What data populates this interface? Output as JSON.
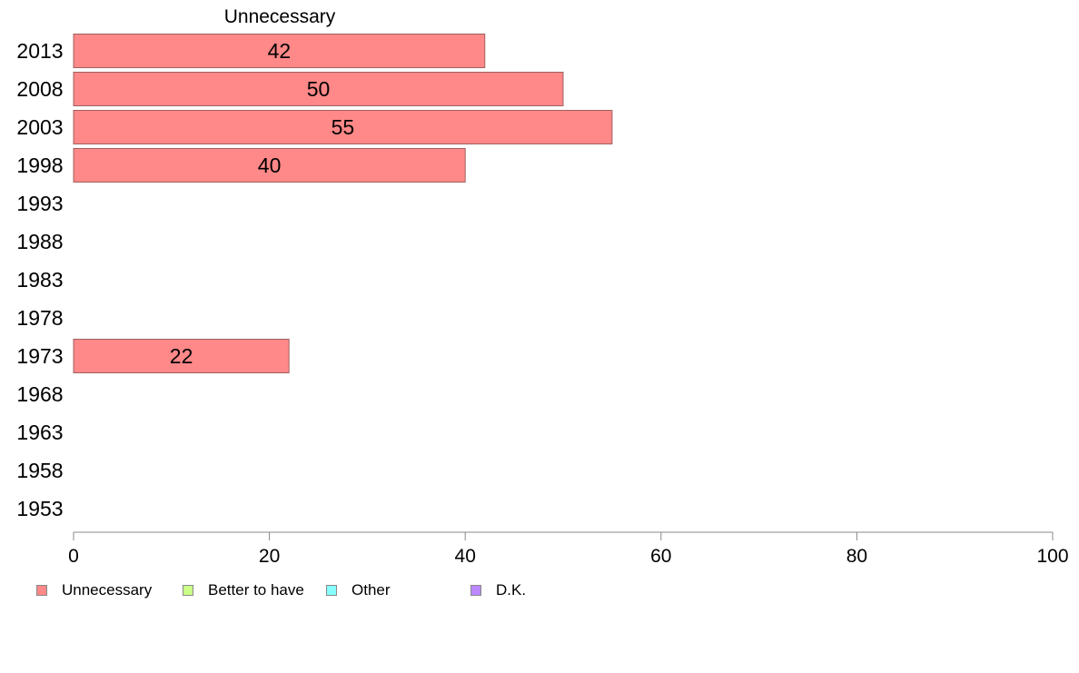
{
  "chart_data": {
    "type": "bar",
    "orientation": "horizontal",
    "title": "Unnecessary",
    "categories": [
      "2013",
      "2008",
      "2003",
      "1998",
      "1993",
      "1988",
      "1983",
      "1978",
      "1973",
      "1968",
      "1963",
      "1958",
      "1953"
    ],
    "series": [
      {
        "name": "Unnecessary",
        "color": "#ff8888",
        "values": [
          42,
          50,
          55,
          40,
          null,
          null,
          null,
          null,
          22,
          null,
          null,
          null,
          null
        ],
        "labels": [
          "42",
          "50",
          "55",
          "40",
          "",
          "",
          "",
          "",
          "22",
          "",
          "",
          "",
          ""
        ]
      }
    ],
    "xlim": [
      0,
      100
    ],
    "xticks": [
      "0",
      "20",
      "40",
      "60",
      "80",
      "100"
    ],
    "xlabel": "",
    "ylabel": "",
    "grid": false,
    "legend_placement": "bottom-left"
  },
  "legend": {
    "items": [
      {
        "label": "Unnecessary",
        "color": "#ff8888"
      },
      {
        "label": "Better to have",
        "color": "#ccff88"
      },
      {
        "label": "Other",
        "color": "#88ffff"
      },
      {
        "label": "D.K.",
        "color": "#bb88ff"
      }
    ]
  }
}
